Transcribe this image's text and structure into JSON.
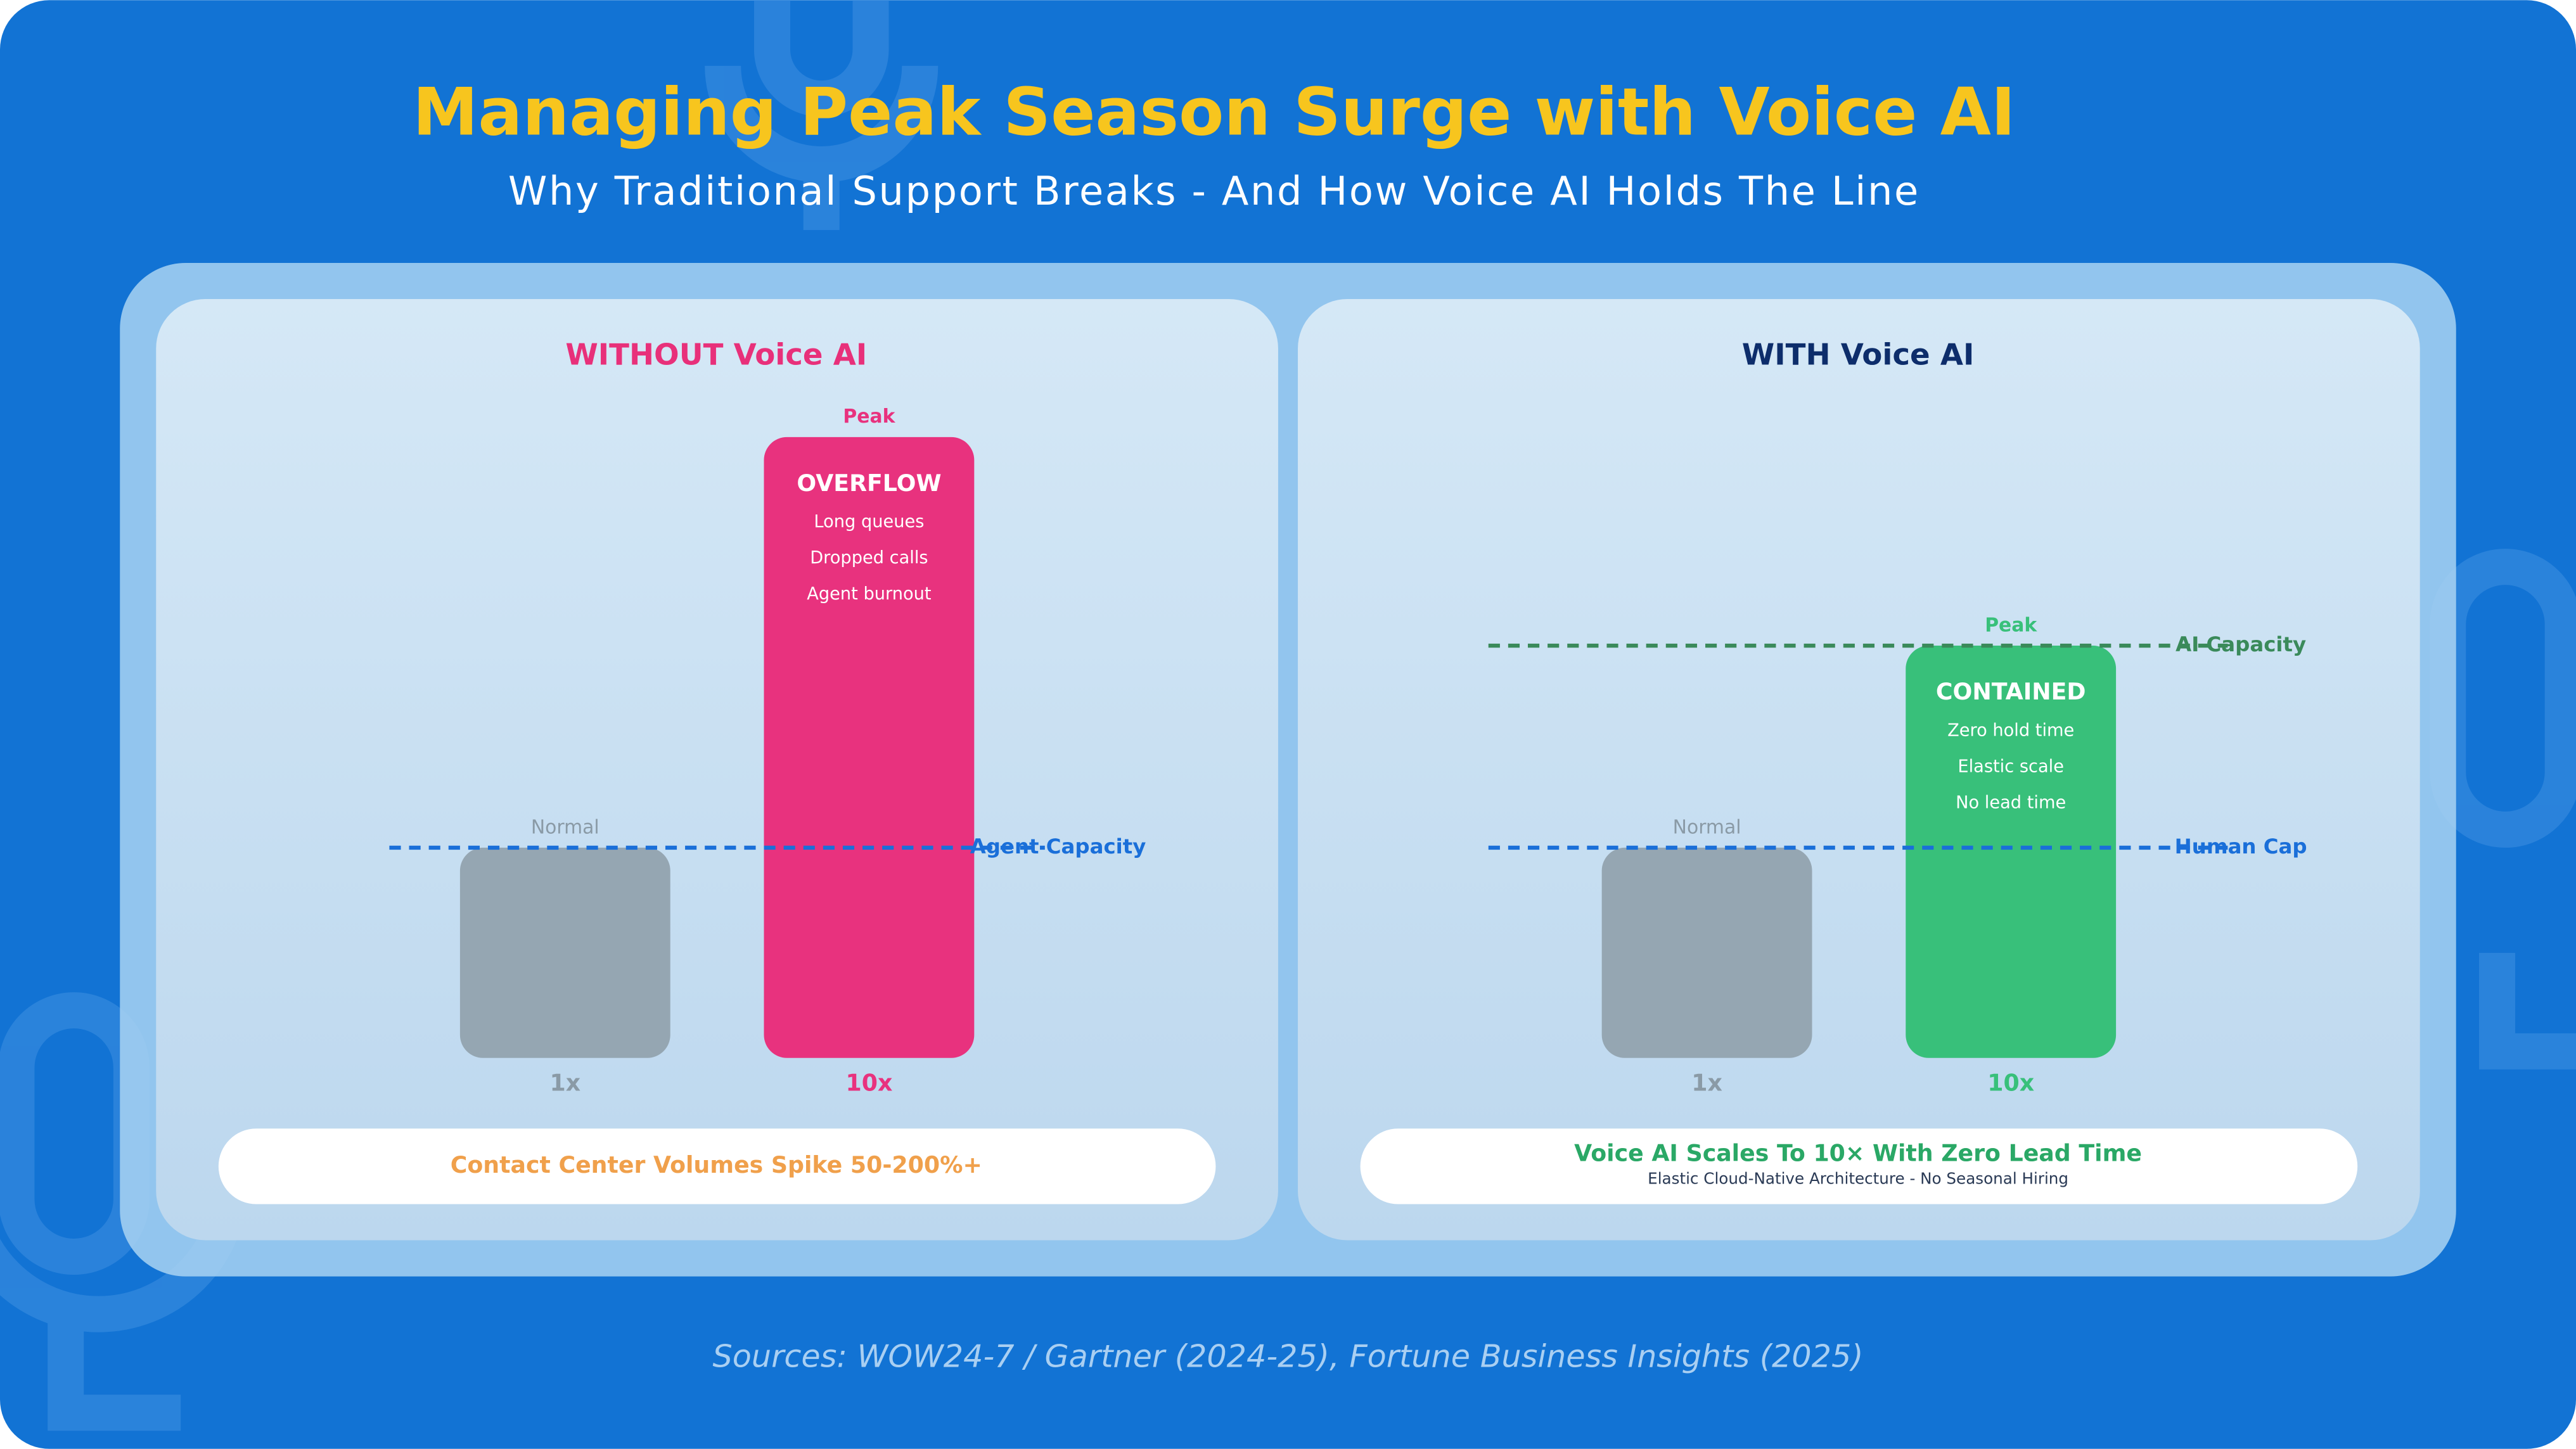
{
  "header": {
    "title": "Managing Peak Season Surge with Voice AI",
    "subtitle": "Why Traditional Support Breaks - And How Voice AI Holds The Line"
  },
  "panels": [
    {
      "title": "WITHOUT Voice AI",
      "bars": [
        {
          "top_label": "Normal",
          "label": "1x"
        },
        {
          "top_label": "Peak",
          "label": "10x",
          "heading": "OVERFLOW",
          "items": [
            "Long queues",
            "Dropped calls",
            "Agent burnout"
          ]
        }
      ],
      "lines": [
        {
          "label": "Agent Capacity"
        }
      ],
      "callout": {
        "text": "Contact Center Volumes Spike 50-200%+"
      }
    },
    {
      "title": "WITH Voice AI",
      "bars": [
        {
          "top_label": "Normal",
          "label": "1x"
        },
        {
          "top_label": "Peak",
          "label": "10x",
          "heading": "CONTAINED",
          "items": [
            "Zero hold time",
            "Elastic scale",
            "No lead time"
          ]
        }
      ],
      "lines": [
        {
          "label": "AI Capacity"
        },
        {
          "label": "Human Cap"
        }
      ],
      "callout": {
        "text": "Voice AI Scales To 10× With Zero Lead Time",
        "subtext": "Elastic Cloud-Native Architecture - No Seasonal Hiring"
      }
    }
  ],
  "footer": {
    "sources": "Sources: WOW24-7 / Gartner (2024-25), Fortune Business Insights (2025)"
  }
}
